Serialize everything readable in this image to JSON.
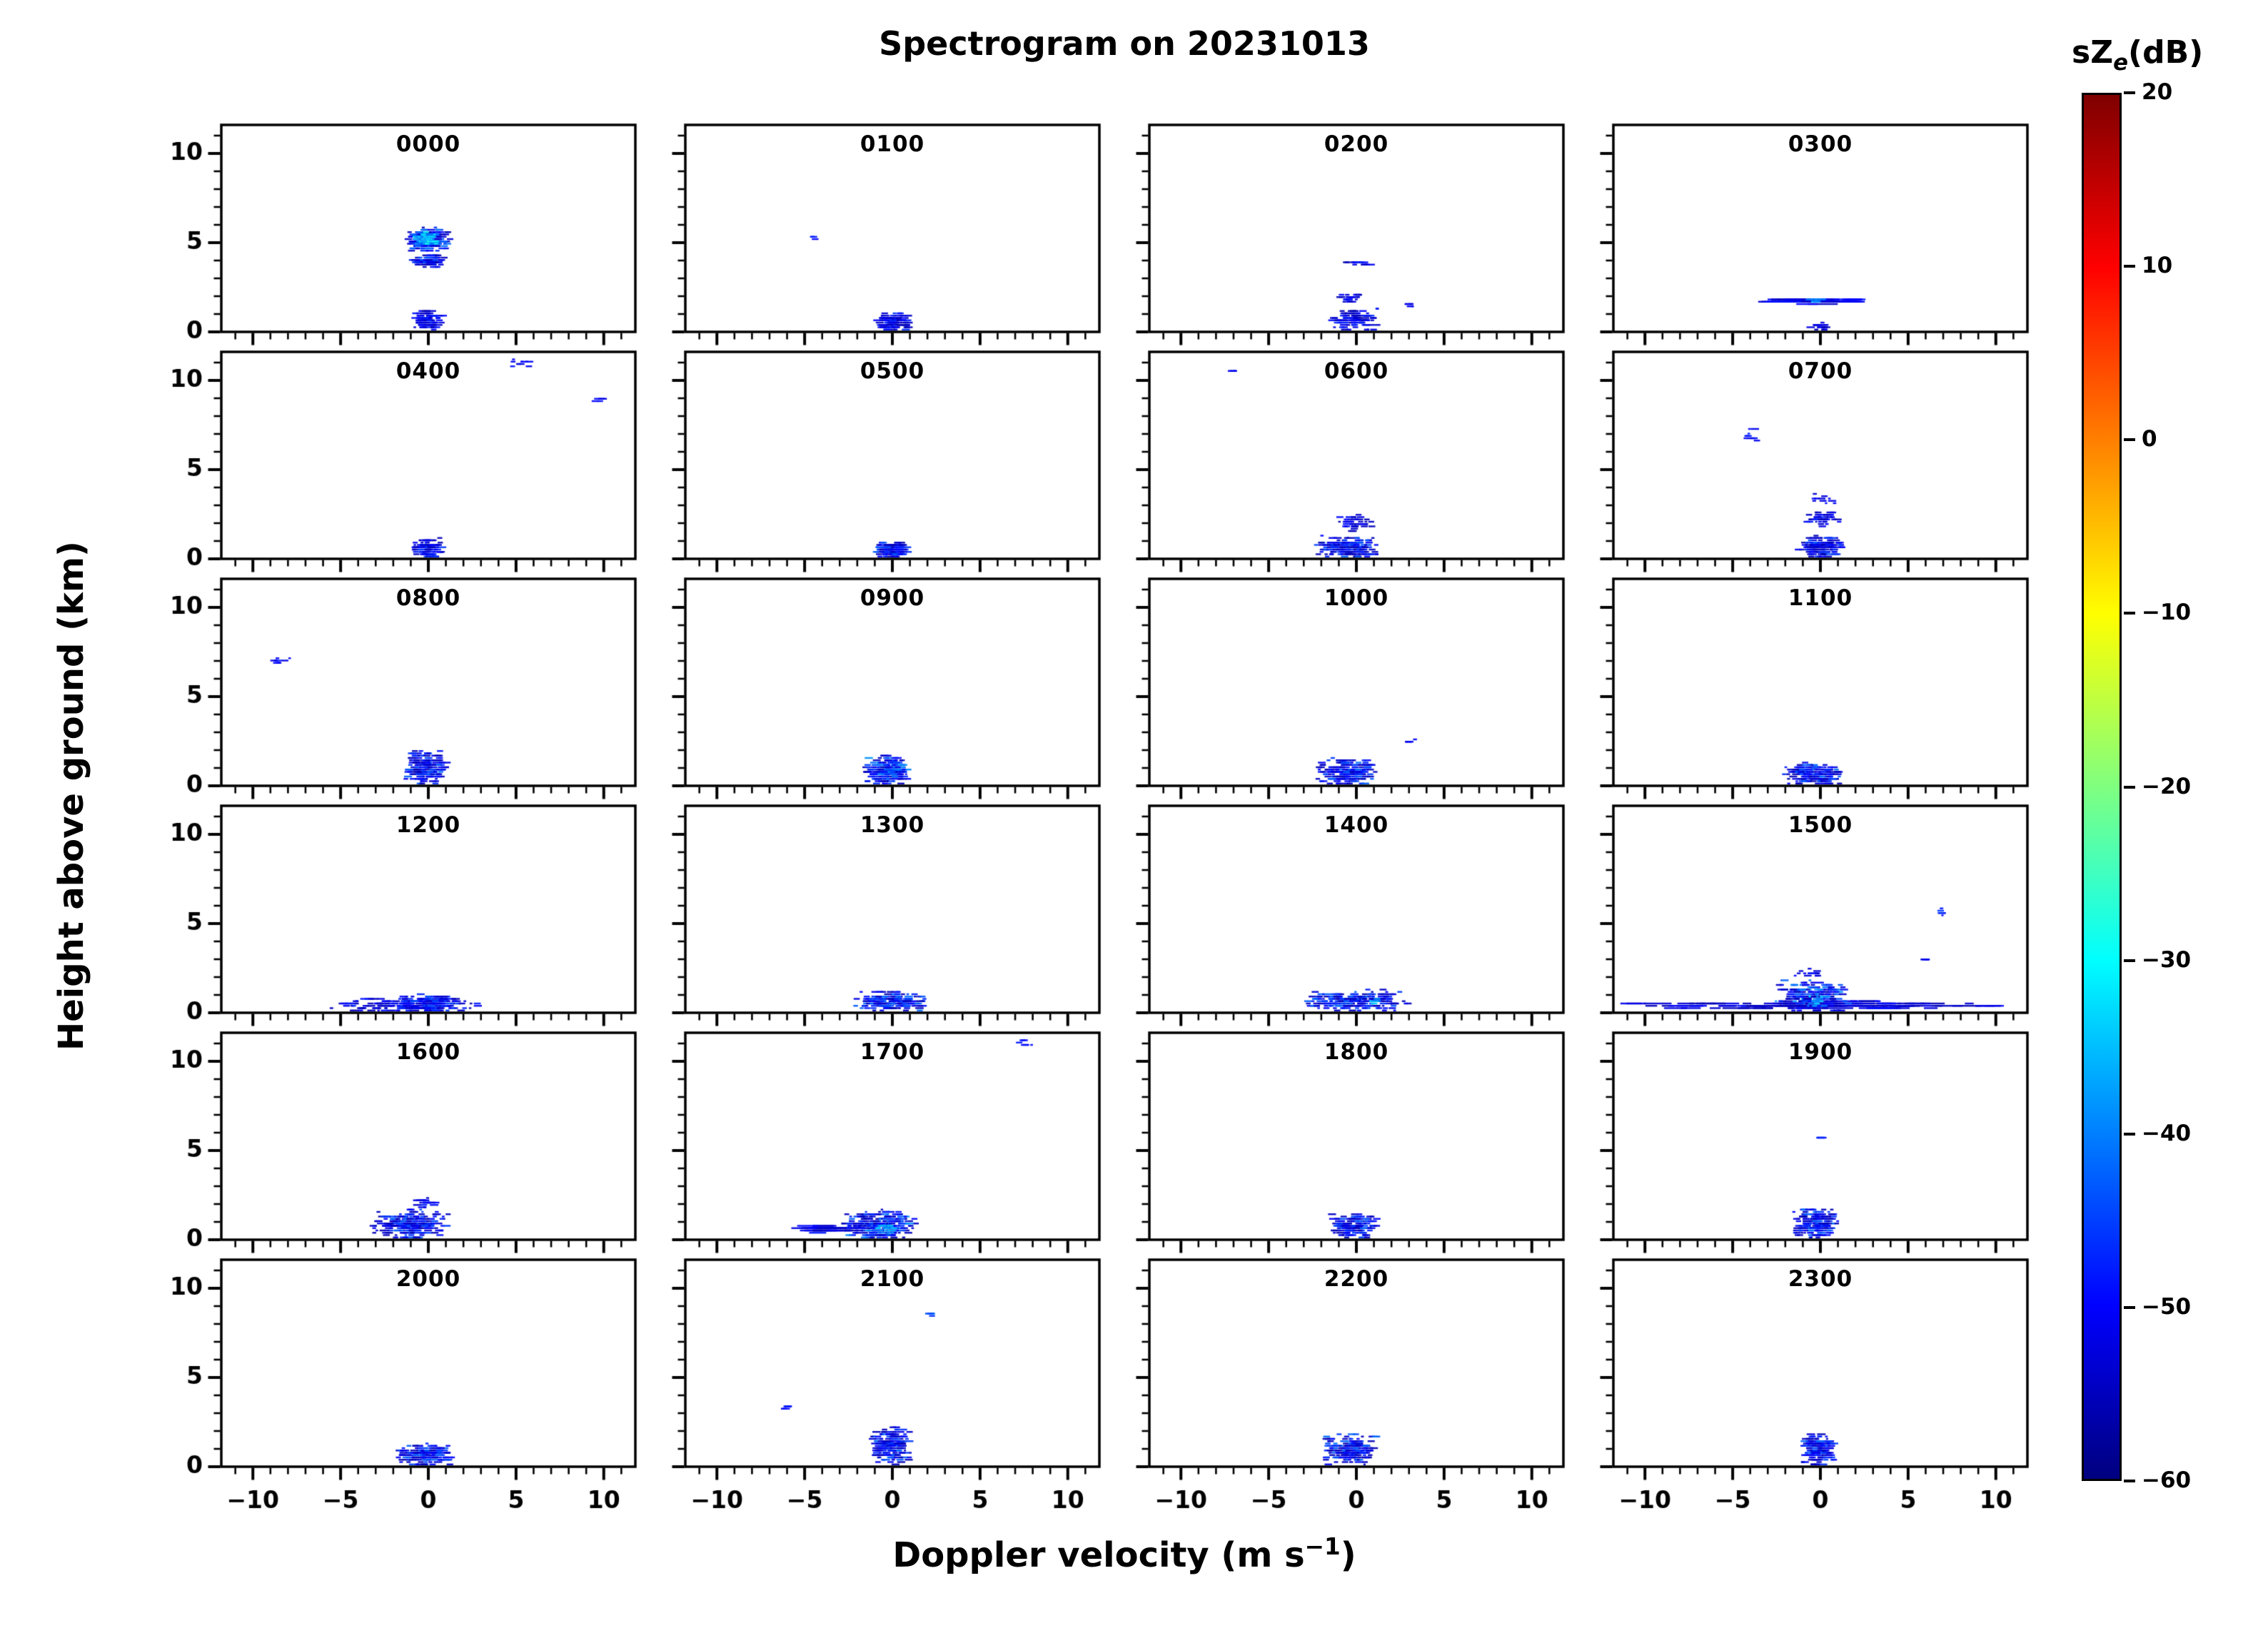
{
  "chart_data": {
    "type": "heatmap",
    "title": "Spectrogram on 20231013",
    "xlabel": "Doppler velocity (m s⁻¹)",
    "xlabel_prefix": "Doppler velocity (m s",
    "xlabel_sup": "−1",
    "xlabel_suffix": ")",
    "ylabel": "Height above ground (km)",
    "xlim": [
      -11.8,
      11.8
    ],
    "ylim": [
      0,
      11.6
    ],
    "x_major": [
      -10,
      -5,
      0,
      5,
      10
    ],
    "x_tick_labels": [
      "−10",
      "−5",
      "0",
      "5",
      "10"
    ],
    "x_minor_step": 1,
    "y_major": [
      0,
      5,
      10
    ],
    "y_tick_labels": [
      "0",
      "5",
      "10"
    ],
    "y_minor_step": 1,
    "grid": false,
    "colorbar": {
      "label_prefix": "sZ",
      "label_sub": "e",
      "label_suffix": "(dB)",
      "vmin": -60,
      "vmax": 20,
      "colormap": "jet",
      "tick_values": [
        20,
        10,
        0,
        -10,
        -20,
        -30,
        -40,
        -50,
        -60
      ],
      "tick_labels": [
        "20",
        "10",
        "0",
        "−10",
        "−20",
        "−30",
        "−40",
        "−50",
        "−60"
      ],
      "stops": [
        [
          "#00007F",
          0
        ],
        [
          "#0000FF",
          0.125
        ],
        [
          "#00FFFF",
          0.375
        ],
        [
          "#FFFF00",
          0.625
        ],
        [
          "#FF0000",
          0.875
        ],
        [
          "#7F0000",
          1
        ]
      ]
    },
    "panels": [
      {
        "label": "0000",
        "features": [
          {
            "v": [
              -1.3,
              1.3
            ],
            "h": [
              4.5,
              5.9
            ],
            "db": [
              -56,
              -40
            ],
            "n": 220
          },
          {
            "v": [
              -0.9,
              0.6
            ],
            "h": [
              4.8,
              5.6
            ],
            "db": [
              -42,
              -28
            ],
            "n": 70
          },
          {
            "v": [
              -1.1,
              1.1
            ],
            "h": [
              3.6,
              4.3
            ],
            "db": [
              -56,
              -42
            ],
            "n": 110
          },
          {
            "v": [
              -0.9,
              0.9
            ],
            "h": [
              0,
              1.3
            ],
            "db": [
              -56,
              -46
            ],
            "n": 110
          }
        ]
      },
      {
        "label": "0100",
        "features": [
          {
            "v": [
              -0.9,
              1.1
            ],
            "h": [
              0,
              1.1
            ],
            "db": [
              -56,
              -44
            ],
            "n": 140
          },
          {
            "v": [
              -4.6,
              -4.2
            ],
            "h": [
              5.2,
              5.4
            ],
            "db": [
              -50,
              -46
            ],
            "n": 4
          }
        ]
      },
      {
        "label": "0200",
        "features": [
          {
            "v": [
              -1.6,
              1.3
            ],
            "h": [
              0,
              1.4
            ],
            "db": [
              -56,
              -46
            ],
            "n": 110
          },
          {
            "v": [
              -1.2,
              0.6
            ],
            "h": [
              1.6,
              2.2
            ],
            "db": [
              -56,
              -48
            ],
            "n": 26
          },
          {
            "v": [
              -0.9,
              0.9
            ],
            "h": [
              3.7,
              4.0
            ],
            "db": [
              -56,
              -48
            ],
            "n": 16
          },
          {
            "v": [
              2.7,
              3.4
            ],
            "h": [
              1.4,
              1.6
            ],
            "db": [
              -53,
              -48
            ],
            "n": 6
          }
        ]
      },
      {
        "label": "0300",
        "features": [
          {
            "v": [
              -3.3,
              2.3
            ],
            "h": [
              1.6,
              1.85
            ],
            "db": [
              -55,
              -46
            ],
            "n": 70,
            "streak": true
          },
          {
            "v": [
              -0.7,
              0.3
            ],
            "h": [
              1.6,
              1.85
            ],
            "db": [
              -40,
              -33
            ],
            "n": 8
          },
          {
            "v": [
              -0.6,
              0.6
            ],
            "h": [
              0,
              0.6
            ],
            "db": [
              -56,
              -48
            ],
            "n": 22
          }
        ]
      },
      {
        "label": "0400",
        "features": [
          {
            "v": [
              -0.9,
              0.9
            ],
            "h": [
              0,
              1.2
            ],
            "db": [
              -56,
              -45
            ],
            "n": 110
          },
          {
            "v": [
              4.6,
              6.3
            ],
            "h": [
              10.8,
              11.2
            ],
            "db": [
              -52,
              -47
            ],
            "n": 9
          },
          {
            "v": [
              9.4,
              10.3
            ],
            "h": [
              8.8,
              9.1
            ],
            "db": [
              -52,
              -48
            ],
            "n": 5
          }
        ]
      },
      {
        "label": "0500",
        "features": [
          {
            "v": [
              -1.0,
              1.0
            ],
            "h": [
              0,
              1.0
            ],
            "db": [
              -56,
              -42
            ],
            "n": 130
          }
        ]
      },
      {
        "label": "0600",
        "features": [
          {
            "v": [
              -2.4,
              1.3
            ],
            "h": [
              0,
              1.3
            ],
            "db": [
              -56,
              -42
            ],
            "n": 180
          },
          {
            "v": [
              -1.1,
              0.9
            ],
            "h": [
              1.4,
              2.6
            ],
            "db": [
              -56,
              -47
            ],
            "n": 45
          },
          {
            "v": [
              -7.3,
              -6.8
            ],
            "h": [
              10.4,
              10.6
            ],
            "db": [
              -52,
              -48
            ],
            "n": 4
          }
        ]
      },
      {
        "label": "0700",
        "features": [
          {
            "v": [
              -1.3,
              1.3
            ],
            "h": [
              0,
              1.3
            ],
            "db": [
              -56,
              -42
            ],
            "n": 160
          },
          {
            "v": [
              -0.9,
              1.1
            ],
            "h": [
              1.8,
              2.7
            ],
            "db": [
              -56,
              -47
            ],
            "n": 45
          },
          {
            "v": [
              -0.6,
              0.9
            ],
            "h": [
              3.0,
              3.7
            ],
            "db": [
              -54,
              -48
            ],
            "n": 12
          },
          {
            "v": [
              -4.3,
              -3.5
            ],
            "h": [
              6.4,
              7.3
            ],
            "db": [
              -52,
              -47
            ],
            "n": 10
          }
        ]
      },
      {
        "label": "0800",
        "features": [
          {
            "v": [
              -1.3,
              1.1
            ],
            "h": [
              0,
              2.1
            ],
            "db": [
              -56,
              -42
            ],
            "n": 190
          },
          {
            "v": [
              -9.3,
              -7.7
            ],
            "h": [
              6.8,
              7.2
            ],
            "db": [
              -52,
              -47
            ],
            "n": 10
          }
        ]
      },
      {
        "label": "0900",
        "features": [
          {
            "v": [
              -1.6,
              1.1
            ],
            "h": [
              0,
              1.7
            ],
            "db": [
              -56,
              -38
            ],
            "n": 240
          }
        ]
      },
      {
        "label": "1000",
        "features": [
          {
            "v": [
              -2.3,
              1.3
            ],
            "h": [
              0,
              1.7
            ],
            "db": [
              -56,
              -41
            ],
            "n": 220
          },
          {
            "v": [
              2.7,
              3.5
            ],
            "h": [
              2.4,
              2.6
            ],
            "db": [
              -52,
              -48
            ],
            "n": 5
          }
        ]
      },
      {
        "label": "1100",
        "features": [
          {
            "v": [
              -2.1,
              1.3
            ],
            "h": [
              0,
              1.3
            ],
            "db": [
              -56,
              -41
            ],
            "n": 190
          }
        ]
      },
      {
        "label": "1200",
        "features": [
          {
            "v": [
              -5.6,
              3.1
            ],
            "h": [
              0,
              0.9
            ],
            "db": [
              -56,
              -46
            ],
            "n": 200
          },
          {
            "v": [
              -1.8,
              1.8
            ],
            "h": [
              0,
              1.1
            ],
            "db": [
              -54,
              -43
            ],
            "n": 140
          }
        ]
      },
      {
        "label": "1300",
        "features": [
          {
            "v": [
              -2.3,
              2.1
            ],
            "h": [
              0,
              1.3
            ],
            "db": [
              -56,
              -41
            ],
            "n": 210
          }
        ]
      },
      {
        "label": "1400",
        "features": [
          {
            "v": [
              -3.3,
              3.1
            ],
            "h": [
              0,
              1.3
            ],
            "db": [
              -56,
              -41
            ],
            "n": 240
          },
          {
            "v": [
              0.7,
              1.5
            ],
            "h": [
              0.4,
              0.9
            ],
            "db": [
              -38,
              -30
            ],
            "n": 6
          }
        ]
      },
      {
        "label": "1500",
        "features": [
          {
            "v": [
              -11.5,
              11.5
            ],
            "h": [
              0.2,
              0.7
            ],
            "db": [
              -56,
              -49
            ],
            "n": 120,
            "streak": true
          },
          {
            "v": [
              -2.6,
              1.6
            ],
            "h": [
              0,
              1.9
            ],
            "db": [
              -56,
              -38
            ],
            "n": 240
          },
          {
            "v": [
              -0.9,
              0.4
            ],
            "h": [
              0.3,
              1.1
            ],
            "db": [
              -40,
              -31
            ],
            "n": 12
          },
          {
            "v": [
              -1.6,
              0.6
            ],
            "h": [
              2.0,
              2.5
            ],
            "db": [
              -54,
              -48
            ],
            "n": 14
          },
          {
            "v": [
              6.7,
              7.4
            ],
            "h": [
              5.4,
              5.9
            ],
            "db": [
              -50,
              -45
            ],
            "n": 6
          },
          {
            "v": [
              5.7,
              6.4
            ],
            "h": [
              2.9,
              3.1
            ],
            "db": [
              -52,
              -48
            ],
            "n": 4
          }
        ]
      },
      {
        "label": "1600",
        "features": [
          {
            "v": [
              -3.4,
              1.3
            ],
            "h": [
              0,
              1.7
            ],
            "db": [
              -56,
              -41
            ],
            "n": 280
          },
          {
            "v": [
              -0.9,
              0.6
            ],
            "h": [
              1.8,
              2.4
            ],
            "db": [
              -54,
              -47
            ],
            "n": 22
          }
        ]
      },
      {
        "label": "1700",
        "features": [
          {
            "v": [
              -3.1,
              1.4
            ],
            "h": [
              0,
              1.7
            ],
            "db": [
              -56,
              -38
            ],
            "n": 280
          },
          {
            "v": [
              -0.9,
              0.3
            ],
            "h": [
              0.3,
              1.1
            ],
            "db": [
              -40,
              -31
            ],
            "n": 14
          },
          {
            "v": [
              -5.6,
              -1.9
            ],
            "h": [
              0.4,
              0.8
            ],
            "db": [
              -55,
              -48
            ],
            "n": 40,
            "streak": true
          },
          {
            "v": [
              7.1,
              8.1
            ],
            "h": [
              10.8,
              11.2
            ],
            "db": [
              -50,
              -46
            ],
            "n": 6
          }
        ]
      },
      {
        "label": "1800",
        "features": [
          {
            "v": [
              -1.6,
              1.3
            ],
            "h": [
              0,
              1.5
            ],
            "db": [
              -56,
              -42
            ],
            "n": 160
          }
        ]
      },
      {
        "label": "1900",
        "features": [
          {
            "v": [
              -1.6,
              1.1
            ],
            "h": [
              0,
              1.9
            ],
            "db": [
              -56,
              -41
            ],
            "n": 200
          },
          {
            "v": [
              -0.5,
              0.3
            ],
            "h": [
              5.6,
              5.9
            ],
            "db": [
              -50,
              -46
            ],
            "n": 4
          }
        ]
      },
      {
        "label": "2000",
        "features": [
          {
            "v": [
              -1.9,
              1.6
            ],
            "h": [
              0,
              1.3
            ],
            "db": [
              -56,
              -42
            ],
            "n": 180
          }
        ]
      },
      {
        "label": "2100",
        "features": [
          {
            "v": [
              -1.3,
              1.1
            ],
            "h": [
              0,
              2.3
            ],
            "db": [
              -56,
              -41
            ],
            "n": 220
          },
          {
            "v": [
              1.7,
              2.5
            ],
            "h": [
              8.4,
              8.7
            ],
            "db": [
              -46,
              -40
            ],
            "n": 5
          },
          {
            "v": [
              -6.3,
              -5.5
            ],
            "h": [
              3.2,
              3.5
            ],
            "db": [
              -53,
              -48
            ],
            "n": 5
          }
        ]
      },
      {
        "label": "2200",
        "features": [
          {
            "v": [
              -1.9,
              1.3
            ],
            "h": [
              0,
              1.9
            ],
            "db": [
              -56,
              -41
            ],
            "n": 210
          }
        ]
      },
      {
        "label": "2300",
        "features": [
          {
            "v": [
              -1.1,
              0.9
            ],
            "h": [
              0,
              1.9
            ],
            "db": [
              -56,
              -42
            ],
            "n": 180
          }
        ]
      }
    ]
  }
}
